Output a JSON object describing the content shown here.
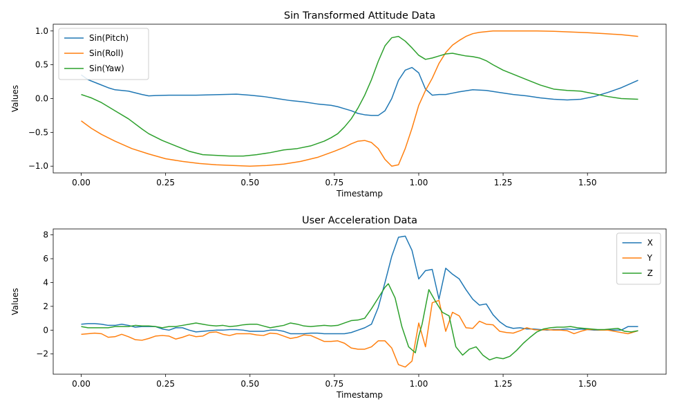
{
  "chart_data": [
    {
      "type": "line",
      "title": "Sin Transformed Attitude Data",
      "xlabel": "Timestamp",
      "ylabel": "Values",
      "xlim": [
        -0.083,
        1.733
      ],
      "ylim": [
        -1.1,
        1.1
      ],
      "xticks": [
        0,
        0.25,
        0.5,
        0.75,
        1.0,
        1.25,
        1.5
      ],
      "xtick_labels": [
        "0.00",
        "0.25",
        "0.50",
        "0.75",
        "1.00",
        "1.25",
        "1.50"
      ],
      "yticks": [
        -1.0,
        -0.5,
        0.0,
        0.5,
        1.0
      ],
      "ytick_labels": [
        "−1.0",
        "−0.5",
        "0.0",
        "0.5",
        "1.0"
      ],
      "legend_position": "upper-left",
      "series": [
        {
          "name": "Sin(Pitch)",
          "color": "#1f77b4",
          "x": [
            0,
            0.02,
            0.05,
            0.08,
            0.1,
            0.14,
            0.18,
            0.2,
            0.22,
            0.26,
            0.3,
            0.34,
            0.38,
            0.42,
            0.46,
            0.5,
            0.54,
            0.58,
            0.62,
            0.66,
            0.7,
            0.74,
            0.76,
            0.78,
            0.8,
            0.82,
            0.84,
            0.86,
            0.88,
            0.9,
            0.92,
            0.94,
            0.96,
            0.98,
            1.0,
            1.02,
            1.04,
            1.06,
            1.08,
            1.1,
            1.12,
            1.16,
            1.2,
            1.24,
            1.28,
            1.32,
            1.36,
            1.4,
            1.44,
            1.48,
            1.52,
            1.56,
            1.6,
            1.65
          ],
          "y": [
            0.35,
            0.28,
            0.22,
            0.16,
            0.13,
            0.11,
            0.06,
            0.04,
            0.045,
            0.05,
            0.05,
            0.05,
            0.055,
            0.06,
            0.065,
            0.05,
            0.03,
            0.0,
            -0.03,
            -0.05,
            -0.08,
            -0.1,
            -0.12,
            -0.15,
            -0.18,
            -0.22,
            -0.24,
            -0.25,
            -0.25,
            -0.18,
            0.0,
            0.27,
            0.42,
            0.46,
            0.38,
            0.14,
            0.05,
            0.06,
            0.06,
            0.08,
            0.1,
            0.13,
            0.12,
            0.09,
            0.06,
            0.04,
            0.01,
            -0.01,
            -0.02,
            -0.01,
            0.03,
            0.09,
            0.16,
            0.27
          ]
        },
        {
          "name": "Sin(Roll)",
          "color": "#ff7f0e",
          "x": [
            0,
            0.03,
            0.06,
            0.1,
            0.15,
            0.2,
            0.25,
            0.3,
            0.35,
            0.4,
            0.45,
            0.5,
            0.55,
            0.6,
            0.65,
            0.7,
            0.75,
            0.78,
            0.8,
            0.82,
            0.84,
            0.86,
            0.88,
            0.9,
            0.92,
            0.94,
            0.96,
            0.98,
            1.0,
            1.02,
            1.04,
            1.06,
            1.08,
            1.1,
            1.12,
            1.14,
            1.16,
            1.18,
            1.2,
            1.22,
            1.25,
            1.3,
            1.35,
            1.4,
            1.45,
            1.5,
            1.55,
            1.6,
            1.65
          ],
          "y": [
            -0.33,
            -0.44,
            -0.53,
            -0.63,
            -0.74,
            -0.82,
            -0.89,
            -0.93,
            -0.96,
            -0.98,
            -0.99,
            -1.0,
            -0.99,
            -0.97,
            -0.93,
            -0.87,
            -0.78,
            -0.72,
            -0.67,
            -0.63,
            -0.62,
            -0.65,
            -0.74,
            -0.9,
            -1.0,
            -0.98,
            -0.74,
            -0.44,
            -0.1,
            0.12,
            0.3,
            0.52,
            0.68,
            0.79,
            0.86,
            0.92,
            0.96,
            0.98,
            0.99,
            1.0,
            1.0,
            1.0,
            1.0,
            0.995,
            0.985,
            0.975,
            0.96,
            0.945,
            0.92
          ]
        },
        {
          "name": "Sin(Yaw)",
          "color": "#2ca02c",
          "x": [
            0,
            0.03,
            0.06,
            0.1,
            0.14,
            0.18,
            0.2,
            0.24,
            0.28,
            0.32,
            0.36,
            0.4,
            0.44,
            0.48,
            0.52,
            0.56,
            0.6,
            0.64,
            0.68,
            0.72,
            0.74,
            0.76,
            0.78,
            0.8,
            0.82,
            0.84,
            0.86,
            0.88,
            0.9,
            0.92,
            0.94,
            0.96,
            0.98,
            1.0,
            1.02,
            1.04,
            1.06,
            1.08,
            1.1,
            1.12,
            1.14,
            1.16,
            1.18,
            1.2,
            1.22,
            1.25,
            1.28,
            1.32,
            1.36,
            1.4,
            1.44,
            1.48,
            1.52,
            1.56,
            1.6,
            1.65
          ],
          "y": [
            0.06,
            0.01,
            -0.06,
            -0.18,
            -0.3,
            -0.45,
            -0.52,
            -0.62,
            -0.7,
            -0.78,
            -0.83,
            -0.84,
            -0.85,
            -0.85,
            -0.83,
            -0.8,
            -0.76,
            -0.74,
            -0.7,
            -0.63,
            -0.58,
            -0.52,
            -0.42,
            -0.3,
            -0.14,
            0.05,
            0.28,
            0.55,
            0.78,
            0.9,
            0.92,
            0.85,
            0.75,
            0.64,
            0.58,
            0.6,
            0.63,
            0.66,
            0.67,
            0.65,
            0.63,
            0.62,
            0.6,
            0.56,
            0.5,
            0.42,
            0.36,
            0.28,
            0.2,
            0.14,
            0.12,
            0.11,
            0.07,
            0.03,
            0.0,
            -0.01
          ]
        }
      ]
    },
    {
      "type": "line",
      "title": "User Acceleration Data",
      "xlabel": "Timestamp",
      "ylabel": "Values",
      "xlim": [
        -0.083,
        1.733
      ],
      "ylim": [
        -3.7,
        8.5
      ],
      "xticks": [
        0,
        0.25,
        0.5,
        0.75,
        1.0,
        1.25,
        1.5
      ],
      "xtick_labels": [
        "0.00",
        "0.25",
        "0.50",
        "0.75",
        "1.00",
        "1.25",
        "1.50"
      ],
      "yticks": [
        -2,
        0,
        2,
        4,
        6,
        8
      ],
      "ytick_labels": [
        "−2",
        "0",
        "2",
        "4",
        "6",
        "8"
      ],
      "legend_position": "upper-right",
      "series": [
        {
          "name": "X",
          "color": "#1f77b4",
          "x": [
            0,
            0.02,
            0.04,
            0.06,
            0.08,
            0.1,
            0.12,
            0.14,
            0.16,
            0.18,
            0.2,
            0.22,
            0.24,
            0.26,
            0.28,
            0.3,
            0.32,
            0.34,
            0.36,
            0.38,
            0.4,
            0.42,
            0.44,
            0.46,
            0.48,
            0.5,
            0.52,
            0.54,
            0.56,
            0.58,
            0.6,
            0.62,
            0.64,
            0.66,
            0.68,
            0.7,
            0.72,
            0.74,
            0.76,
            0.78,
            0.8,
            0.82,
            0.84,
            0.86,
            0.88,
            0.9,
            0.92,
            0.94,
            0.96,
            0.98,
            1.0,
            1.02,
            1.04,
            1.06,
            1.08,
            1.1,
            1.12,
            1.14,
            1.16,
            1.18,
            1.2,
            1.22,
            1.24,
            1.26,
            1.28,
            1.3,
            1.32,
            1.34,
            1.36,
            1.38,
            1.4,
            1.42,
            1.44,
            1.46,
            1.48,
            1.5,
            1.52,
            1.54,
            1.56,
            1.58,
            1.6,
            1.62,
            1.65
          ],
          "y": [
            0.5,
            0.55,
            0.55,
            0.5,
            0.4,
            0.4,
            0.5,
            0.4,
            0.25,
            0.3,
            0.3,
            0.3,
            0.1,
            0.0,
            0.2,
            0.2,
            0.0,
            -0.15,
            -0.1,
            -0.05,
            0.0,
            0.0,
            0.05,
            0.05,
            0.0,
            -0.1,
            -0.1,
            -0.1,
            0.0,
            0.0,
            -0.1,
            -0.3,
            -0.3,
            -0.3,
            -0.25,
            -0.25,
            -0.3,
            -0.3,
            -0.3,
            -0.3,
            -0.2,
            0.0,
            0.2,
            0.5,
            1.9,
            4.0,
            6.2,
            7.8,
            7.9,
            6.7,
            4.3,
            5.0,
            5.1,
            2.6,
            5.2,
            4.7,
            4.3,
            3.4,
            2.6,
            2.1,
            2.2,
            1.3,
            0.7,
            0.3,
            0.15,
            0.2,
            0.1,
            0.1,
            0.05,
            0.0,
            0.05,
            0.05,
            0.1,
            0.05,
            0.1,
            0.05,
            0.0,
            0.0,
            0.0,
            0.0,
            0.0,
            0.3,
            0.3
          ]
        },
        {
          "name": "Y",
          "color": "#ff7f0e",
          "x": [
            0,
            0.02,
            0.04,
            0.06,
            0.08,
            0.1,
            0.12,
            0.14,
            0.16,
            0.18,
            0.2,
            0.22,
            0.24,
            0.26,
            0.28,
            0.3,
            0.32,
            0.34,
            0.36,
            0.38,
            0.4,
            0.42,
            0.44,
            0.46,
            0.48,
            0.5,
            0.52,
            0.54,
            0.56,
            0.58,
            0.6,
            0.62,
            0.64,
            0.66,
            0.68,
            0.7,
            0.72,
            0.74,
            0.76,
            0.78,
            0.8,
            0.82,
            0.84,
            0.86,
            0.88,
            0.9,
            0.92,
            0.94,
            0.96,
            0.98,
            1.0,
            1.02,
            1.04,
            1.06,
            1.08,
            1.1,
            1.12,
            1.14,
            1.16,
            1.18,
            1.2,
            1.22,
            1.24,
            1.26,
            1.28,
            1.3,
            1.32,
            1.34,
            1.36,
            1.38,
            1.4,
            1.42,
            1.44,
            1.46,
            1.48,
            1.5,
            1.52,
            1.54,
            1.56,
            1.58,
            1.6,
            1.62,
            1.65
          ],
          "y": [
            -0.35,
            -0.3,
            -0.25,
            -0.3,
            -0.6,
            -0.55,
            -0.35,
            -0.55,
            -0.8,
            -0.85,
            -0.7,
            -0.5,
            -0.45,
            -0.5,
            -0.75,
            -0.6,
            -0.4,
            -0.55,
            -0.5,
            -0.2,
            -0.15,
            -0.35,
            -0.45,
            -0.3,
            -0.3,
            -0.3,
            -0.4,
            -0.45,
            -0.25,
            -0.3,
            -0.5,
            -0.7,
            -0.6,
            -0.4,
            -0.45,
            -0.7,
            -0.95,
            -0.95,
            -0.9,
            -1.1,
            -1.5,
            -1.6,
            -1.6,
            -1.4,
            -0.9,
            -0.9,
            -1.5,
            -2.9,
            -3.1,
            -2.6,
            0.6,
            -1.4,
            2.3,
            2.5,
            -0.1,
            1.5,
            1.2,
            0.2,
            0.15,
            0.75,
            0.5,
            0.45,
            -0.1,
            -0.2,
            -0.25,
            -0.05,
            0.2,
            0.05,
            0.0,
            0.05,
            0.0,
            0.0,
            -0.05,
            -0.3,
            -0.1,
            0.05,
            0.05,
            0.0,
            0.0,
            -0.1,
            -0.2,
            -0.3,
            -0.05
          ]
        },
        {
          "name": "Z",
          "color": "#2ca02c",
          "x": [
            0,
            0.02,
            0.04,
            0.06,
            0.08,
            0.1,
            0.12,
            0.14,
            0.16,
            0.18,
            0.2,
            0.22,
            0.24,
            0.26,
            0.28,
            0.3,
            0.32,
            0.34,
            0.36,
            0.38,
            0.4,
            0.42,
            0.44,
            0.46,
            0.48,
            0.5,
            0.52,
            0.54,
            0.56,
            0.58,
            0.6,
            0.62,
            0.64,
            0.66,
            0.68,
            0.7,
            0.72,
            0.74,
            0.76,
            0.78,
            0.8,
            0.82,
            0.84,
            0.86,
            0.88,
            0.9,
            0.91,
            0.93,
            0.95,
            0.97,
            0.99,
            1.0,
            1.01,
            1.03,
            1.05,
            1.07,
            1.09,
            1.11,
            1.13,
            1.15,
            1.17,
            1.19,
            1.21,
            1.23,
            1.25,
            1.27,
            1.29,
            1.31,
            1.33,
            1.35,
            1.37,
            1.39,
            1.41,
            1.43,
            1.45,
            1.47,
            1.49,
            1.51,
            1.53,
            1.55,
            1.57,
            1.59,
            1.61,
            1.63,
            1.65
          ],
          "y": [
            0.3,
            0.2,
            0.2,
            0.2,
            0.2,
            0.3,
            0.3,
            0.3,
            0.4,
            0.35,
            0.35,
            0.3,
            0.2,
            0.3,
            0.3,
            0.4,
            0.5,
            0.6,
            0.5,
            0.4,
            0.35,
            0.4,
            0.3,
            0.35,
            0.45,
            0.5,
            0.5,
            0.35,
            0.2,
            0.3,
            0.4,
            0.6,
            0.5,
            0.35,
            0.3,
            0.35,
            0.4,
            0.35,
            0.4,
            0.6,
            0.8,
            0.85,
            1.0,
            1.8,
            2.7,
            3.6,
            3.9,
            2.7,
            0.3,
            -1.4,
            -1.9,
            -0.5,
            0.5,
            3.4,
            2.4,
            1.5,
            1.2,
            -1.4,
            -2.1,
            -1.6,
            -1.4,
            -2.1,
            -2.5,
            -2.3,
            -2.4,
            -2.2,
            -1.7,
            -1.1,
            -0.6,
            -0.15,
            0.1,
            0.2,
            0.25,
            0.25,
            0.3,
            0.2,
            0.15,
            0.1,
            0.05,
            0.05,
            0.1,
            0.15,
            -0.1,
            -0.15,
            -0.05
          ]
        }
      ]
    }
  ]
}
